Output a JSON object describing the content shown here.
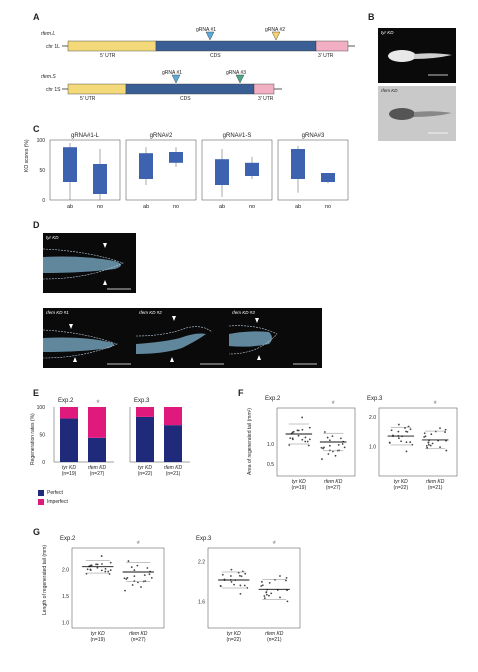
{
  "panels": {
    "A": "A",
    "B": "B",
    "C": "C",
    "D": "D",
    "E": "E",
    "F": "F",
    "G": "G"
  },
  "panelA": {
    "gene1": {
      "name": "rfem.L",
      "chr": "chr 1L",
      "utr5": "5' UTR",
      "cds": "CDS",
      "utr3": "3' UTR",
      "grna1": "gRNA #1",
      "grna2": "gRNA #2"
    },
    "gene2": {
      "name": "rfem.S",
      "chr": "chr 1S",
      "utr5": "5' UTR",
      "cds": "CDS",
      "utr3": "3' UTR",
      "grna1": "gRNA #1",
      "grna3": "gRNA #3"
    },
    "colors": {
      "utr5": "#f3d97a",
      "cds": "#3a5f95",
      "utr3": "#f2aec2",
      "grna1": "#5aa9d6",
      "grna2": "#f5d56b",
      "grna3": "#4aa68c"
    }
  },
  "panelB": {
    "top": "tyr KD",
    "bottom": "rfem KD"
  },
  "panelD": {
    "top": "tyr KD",
    "p1": "rfem KD #1",
    "p2": "rfem KD #2",
    "p3": "rfem KD #3"
  },
  "chart_data": [
    {
      "id": "C",
      "type": "box",
      "ylabel": "KO scores (%)",
      "yticks": [
        "0",
        "50",
        "100"
      ],
      "ylim": [
        0,
        100
      ],
      "categories": [
        "ab",
        "no"
      ],
      "panels": [
        {
          "title": "gRNA#1-L",
          "boxes": [
            {
              "q1": 30,
              "q3": 88,
              "min": 0,
              "max": 95
            },
            {
              "q1": 10,
              "q3": 60,
              "min": 0,
              "max": 85
            }
          ]
        },
        {
          "title": "gRNA#2",
          "boxes": [
            {
              "q1": 35,
              "q3": 78,
              "min": 25,
              "max": 88
            },
            {
              "q1": 62,
              "q3": 80,
              "min": 55,
              "max": 88
            }
          ]
        },
        {
          "title": "gRNA#1-S",
          "boxes": [
            {
              "q1": 25,
              "q3": 68,
              "min": 5,
              "max": 85
            },
            {
              "q1": 40,
              "q3": 62,
              "min": 35,
              "max": 72
            }
          ]
        },
        {
          "title": "gRNA#3",
          "boxes": [
            {
              "q1": 35,
              "q3": 85,
              "min": 12,
              "max": 90
            },
            {
              "q1": 30,
              "q3": 45,
              "min": 28,
              "max": 45
            }
          ]
        }
      ]
    },
    {
      "id": "E",
      "type": "bar",
      "stacked": true,
      "ylabel": "Regeneration rates (%)",
      "yticks": [
        "0",
        "50",
        "100"
      ],
      "ylim": [
        0,
        100
      ],
      "panels": [
        {
          "title": "Exp.2",
          "categories": [
            "tyr KD",
            "rfem KD"
          ],
          "n": [
            "(n=19)",
            "(n=27)"
          ],
          "series": [
            {
              "name": "Perfect",
              "values": [
                79,
                44
              ]
            },
            {
              "name": "Imperfect",
              "values": [
                21,
                56
              ]
            }
          ],
          "sig": "*"
        },
        {
          "title": "Exp.3",
          "categories": [
            "tyr KD",
            "rfem KD"
          ],
          "n": [
            "(n=22)",
            "(n=21)"
          ],
          "series": [
            {
              "name": "Perfect",
              "values": [
                82,
                67
              ]
            },
            {
              "name": "Imperfect",
              "values": [
                18,
                33
              ]
            }
          ],
          "sig": ""
        }
      ],
      "legend": [
        "Perfect",
        "Imperfect"
      ],
      "colors": {
        "Perfect": "#1f2a7a",
        "Imperfect": "#e0197d"
      }
    },
    {
      "id": "F",
      "type": "scatter",
      "ylabel": "Area of regenerated tail (mm²)",
      "panels": [
        {
          "title": "Exp.2",
          "yticks": [
            "0.5",
            "1.0"
          ],
          "categories": [
            "tyr KD",
            "rfem KD"
          ],
          "n": [
            "(n=19)",
            "(n=27)"
          ],
          "sig": "*",
          "ylim": [
            0.2,
            1.9
          ],
          "means": [
            1.25,
            1.05
          ],
          "sd": [
            0.25,
            0.22
          ]
        },
        {
          "title": "Exp.3",
          "yticks": [
            "1.0",
            "2.0"
          ],
          "categories": [
            "tyr KD",
            "rfem KD"
          ],
          "n": [
            "(n=22)",
            "(n=21)"
          ],
          "sig": "*",
          "ylim": [
            0.0,
            2.3
          ],
          "means": [
            1.35,
            1.22
          ],
          "sd": [
            0.3,
            0.3
          ]
        }
      ]
    },
    {
      "id": "G",
      "type": "scatter",
      "ylabel": "Length of regenerated tail (mm)",
      "panels": [
        {
          "title": "Exp.2",
          "yticks": [
            "1.0",
            "1.5",
            "2.0"
          ],
          "categories": [
            "tyr KD",
            "rfem KD"
          ],
          "n": [
            "(n=19)",
            "(n=27)"
          ],
          "sig": "*",
          "ylim": [
            0.9,
            2.4
          ],
          "means": [
            2.05,
            1.95
          ],
          "sd": [
            0.12,
            0.18
          ]
        },
        {
          "title": "Exp.3",
          "yticks": [
            "1.6",
            "2.2"
          ],
          "categories": [
            "tyr KD",
            "rfem KD"
          ],
          "n": [
            "(n=22)",
            "(n=21)"
          ],
          "sig": "*",
          "ylim": [
            1.2,
            2.4
          ],
          "means": [
            1.92,
            1.78
          ],
          "sd": [
            0.12,
            0.15
          ]
        }
      ]
    }
  ]
}
